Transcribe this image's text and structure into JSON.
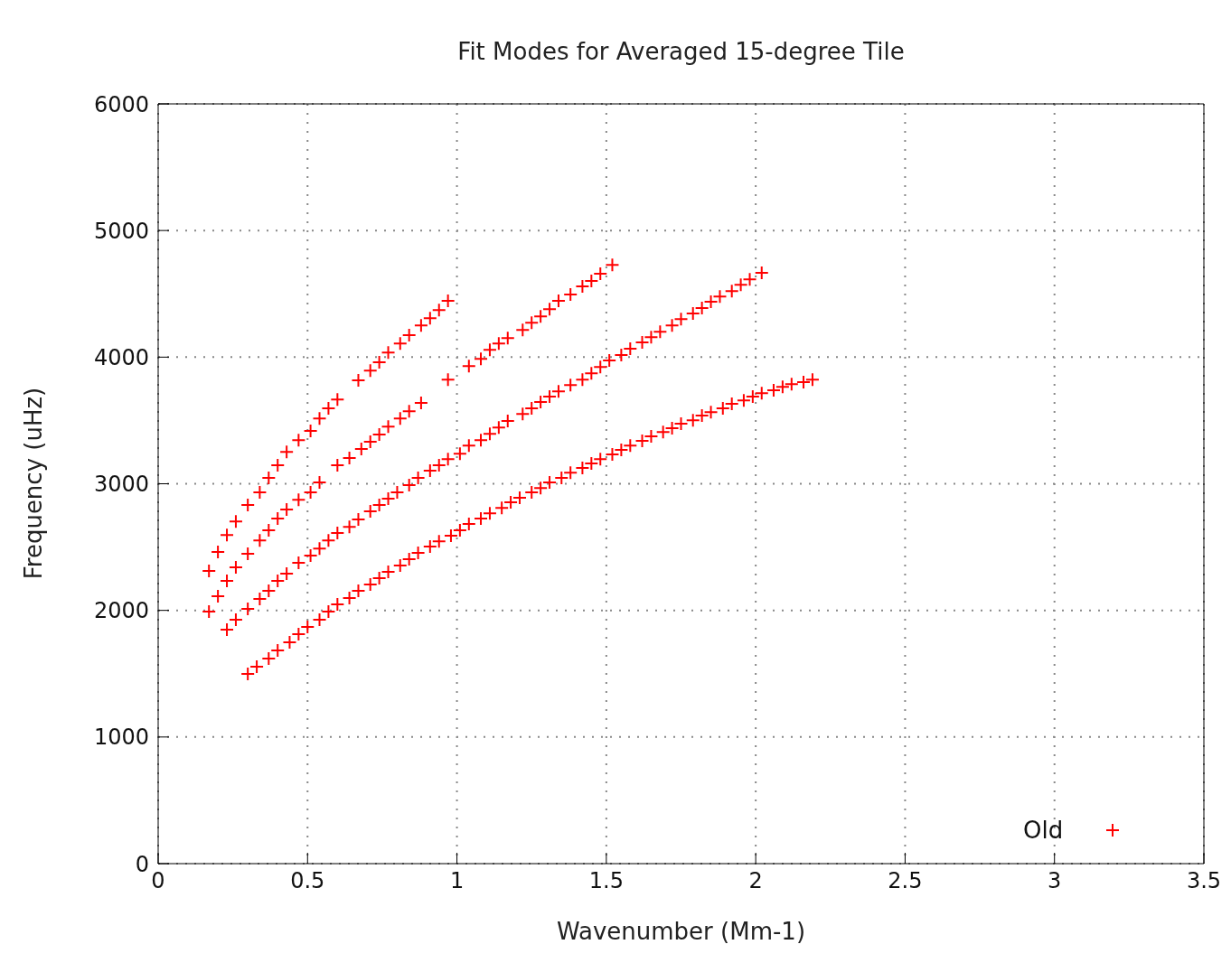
{
  "chart_data": {
    "type": "scatter",
    "title": "Fit Modes for Averaged 15-degree Tile",
    "xlabel": "Wavenumber (Mm-1)",
    "ylabel": "Frequency (uHz)",
    "xlim": [
      0,
      3.5
    ],
    "xticks": [
      0,
      0.5,
      1,
      1.5,
      2,
      2.5,
      3,
      3.5
    ],
    "ylim": [
      0,
      6000
    ],
    "yticks": [
      0,
      1000,
      2000,
      3000,
      4000,
      5000,
      6000
    ],
    "grid": true,
    "legend": "bottom right",
    "marker": "cross",
    "series": [
      {
        "name": "Old",
        "color": "#ff0000",
        "x": [
          0.3,
          0.33,
          0.37,
          0.4,
          0.44,
          0.47,
          0.5,
          0.54,
          0.57,
          0.6,
          0.64,
          0.67,
          0.71,
          0.74,
          0.77,
          0.81,
          0.84,
          0.87,
          0.91,
          0.94,
          0.98,
          1.01,
          1.04,
          1.08,
          1.11,
          1.15,
          1.18,
          1.21,
          1.25,
          1.28,
          1.31,
          1.35,
          1.38,
          1.42,
          1.45,
          1.48,
          1.52,
          1.55,
          1.58,
          1.62,
          1.65,
          1.69,
          1.72,
          1.75,
          1.79,
          1.82,
          1.85,
          1.89,
          1.92,
          1.96,
          1.99,
          2.02,
          2.06,
          2.09,
          2.12,
          2.16,
          2.19,
          0.23,
          0.26,
          0.3,
          0.34,
          0.37,
          0.4,
          0.43,
          0.47,
          0.51,
          0.54,
          0.57,
          0.6,
          0.64,
          0.67,
          0.71,
          0.74,
          0.77,
          0.8,
          0.84,
          0.87,
          0.91,
          0.94,
          0.97,
          1.01,
          1.04,
          1.08,
          1.11,
          1.14,
          1.17,
          1.22,
          1.25,
          1.28,
          1.31,
          1.34,
          1.38,
          1.42,
          1.45,
          1.48,
          1.51,
          1.55,
          1.58,
          1.62,
          1.65,
          1.68,
          1.72,
          1.75,
          1.79,
          1.82,
          1.85,
          1.88,
          1.92,
          1.95,
          1.98,
          2.02,
          0.17,
          0.2,
          0.23,
          0.26,
          0.3,
          0.34,
          0.37,
          0.4,
          0.43,
          0.47,
          0.51,
          0.54,
          0.6,
          0.64,
          0.68,
          0.71,
          0.74,
          0.77,
          0.81,
          0.84,
          0.88,
          0.97,
          1.04,
          1.08,
          1.11,
          1.14,
          1.17,
          1.22,
          1.25,
          1.28,
          1.31,
          1.34,
          1.38,
          1.42,
          1.45,
          1.48,
          1.52,
          0.17,
          0.2,
          0.23,
          0.26,
          0.3,
          0.34,
          0.37,
          0.4,
          0.43,
          0.47,
          0.51,
          0.54,
          0.57,
          0.6,
          0.67,
          0.71,
          0.74,
          0.77,
          0.81,
          0.84,
          0.88,
          0.91,
          0.94,
          0.97
        ],
        "values": [
          1498,
          1555,
          1619,
          1683,
          1748,
          1812,
          1869,
          1926,
          1990,
          2047,
          2097,
          2154,
          2204,
          2254,
          2304,
          2354,
          2404,
          2454,
          2504,
          2546,
          2589,
          2632,
          2682,
          2725,
          2767,
          2810,
          2853,
          2889,
          2932,
          2967,
          3010,
          3046,
          3088,
          3124,
          3160,
          3195,
          3231,
          3267,
          3302,
          3338,
          3374,
          3409,
          3438,
          3474,
          3502,
          3538,
          3566,
          3595,
          3631,
          3659,
          3688,
          3716,
          3738,
          3766,
          3787,
          3802,
          3823,
          1847,
          1926,
          2011,
          2090,
          2154,
          2233,
          2290,
          2375,
          2432,
          2489,
          2553,
          2611,
          2660,
          2718,
          2782,
          2832,
          2882,
          2932,
          2989,
          3046,
          3103,
          3146,
          3195,
          3238,
          3302,
          3345,
          3395,
          3445,
          3495,
          3552,
          3595,
          3645,
          3688,
          3730,
          3780,
          3823,
          3873,
          3923,
          3973,
          4016,
          4066,
          4116,
          4158,
          4201,
          4251,
          4301,
          4344,
          4387,
          4437,
          4479,
          4522,
          4572,
          4615,
          4665,
          1990,
          2111,
          2233,
          2340,
          2447,
          2553,
          2632,
          2725,
          2796,
          2874,
          2932,
          3010,
          3146,
          3203,
          3274,
          3331,
          3388,
          3452,
          3516,
          3573,
          3638,
          3823,
          3930,
          3987,
          4058,
          4108,
          4151,
          4215,
          4272,
          4322,
          4379,
          4444,
          4494,
          4558,
          4601,
          4658,
          4729,
          2311,
          2461,
          2596,
          2703,
          2832,
          2932,
          3046,
          3146,
          3252,
          3345,
          3417,
          3516,
          3595,
          3666,
          3816,
          3894,
          3959,
          4037,
          4108,
          4173,
          4251,
          4308,
          4372,
          4444
        ]
      }
    ]
  }
}
